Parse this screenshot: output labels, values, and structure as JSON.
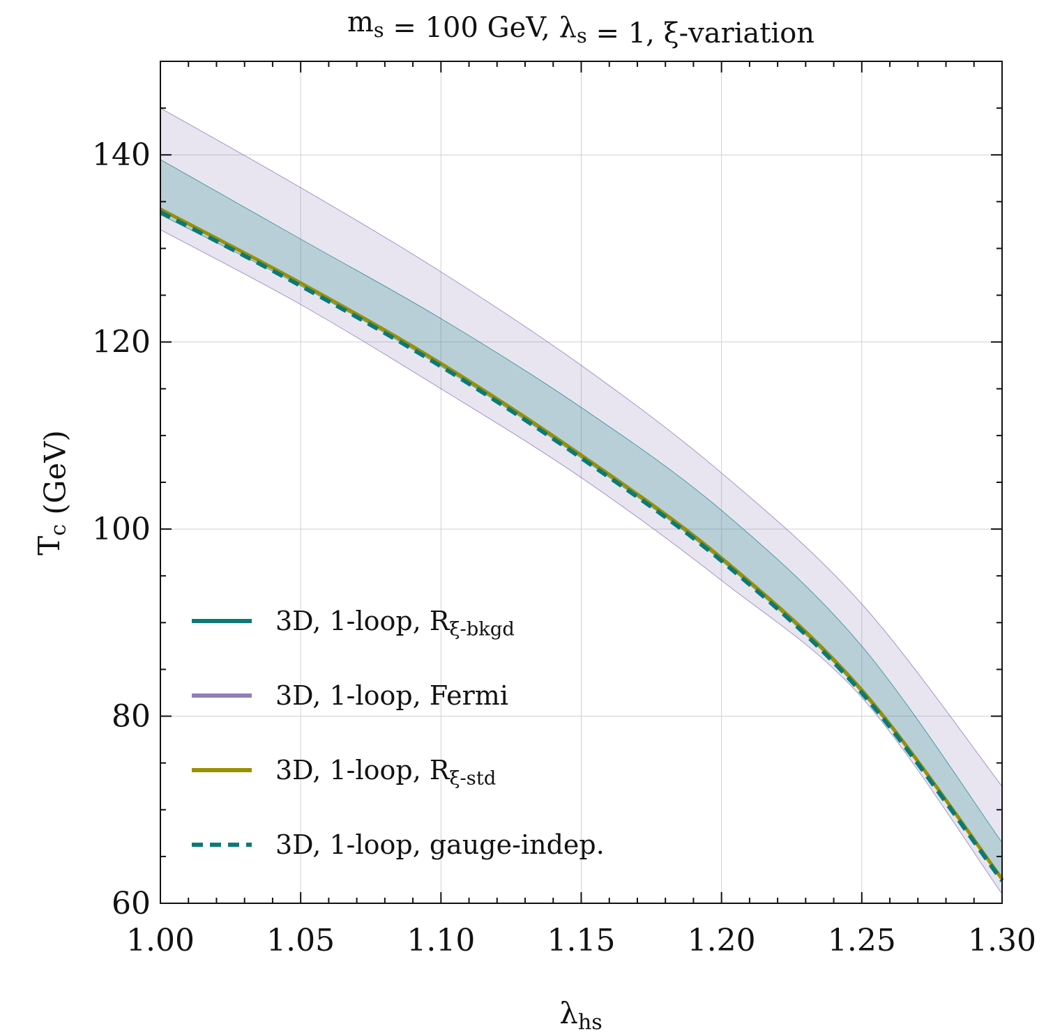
{
  "chart_data": {
    "type": "line",
    "title": "m_s = 100 GeV, λ_s = 1, ξ-variation",
    "xlabel": "λ_hs",
    "ylabel": "T_c (GeV)",
    "xlim": [
      1.0,
      1.3
    ],
    "ylim": [
      60,
      150
    ],
    "xticks": [
      1.0,
      1.05,
      1.1,
      1.15,
      1.2,
      1.25,
      1.3
    ],
    "xtick_labels": [
      "1.00",
      "1.05",
      "1.10",
      "1.15",
      "1.20",
      "1.25",
      "1.30"
    ],
    "yticks": [
      60,
      80,
      100,
      120,
      140
    ],
    "ytick_labels": [
      "60",
      "80",
      "100",
      "120",
      "140"
    ],
    "grid": true,
    "legend_position": "lower-left",
    "x": [
      1.0,
      1.05,
      1.1,
      1.15,
      1.2,
      1.25,
      1.3
    ],
    "bands": [
      {
        "name": "3D, 1-loop, Fermi",
        "color": "#7f6fb0",
        "fill_opacity": 0.18,
        "upper": [
          145.0,
          136.5,
          127.5,
          117.5,
          106.0,
          92.0,
          72.5
        ],
        "lower": [
          132.0,
          124.0,
          115.0,
          105.5,
          94.5,
          82.0,
          61.0
        ]
      },
      {
        "name": "3D, 1-loop, R_ξ-bkgd",
        "color": "#10857f",
        "fill_opacity": 0.22,
        "upper": [
          139.5,
          131.0,
          122.5,
          113.0,
          102.0,
          87.5,
          66.5
        ],
        "lower": [
          133.6,
          126.0,
          117.4,
          107.6,
          96.6,
          82.5,
          62.5
        ]
      }
    ],
    "series": [
      {
        "name": "3D, 1-loop, R_ξ-bkgd",
        "color": "#0b7a75",
        "dash": "solid",
        "values": [
          134.2,
          126.3,
          117.7,
          107.9,
          96.9,
          82.8,
          62.6
        ]
      },
      {
        "name": "3D, 1-loop, Fermi",
        "color": "#8f80b8",
        "dash": "solid",
        "values": [
          134.2,
          126.3,
          117.7,
          107.9,
          96.9,
          82.8,
          62.6
        ]
      },
      {
        "name": "3D, 1-loop, R_ξ-std",
        "color": "#999000",
        "dash": "solid",
        "values": [
          134.2,
          126.3,
          117.7,
          107.9,
          96.9,
          82.8,
          62.6
        ]
      },
      {
        "name": "3D, 1-loop, gauge-indep.",
        "color": "#0b7a75",
        "dash": "dashed",
        "values": [
          133.9,
          126.0,
          117.4,
          107.6,
          96.6,
          82.5,
          62.4
        ]
      }
    ]
  }
}
